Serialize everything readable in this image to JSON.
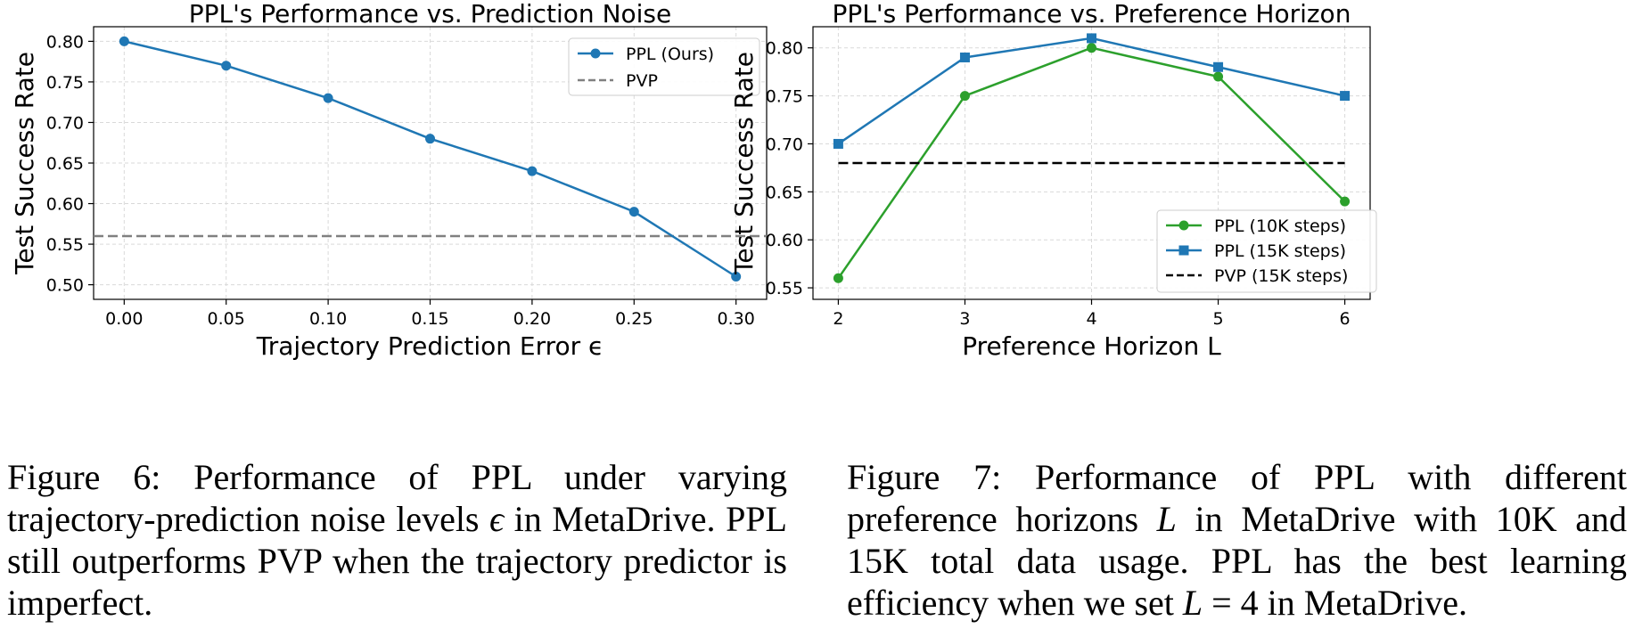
{
  "chart_data": [
    {
      "type": "line",
      "title": "PPL's Performance vs. Prediction Noise",
      "xlabel": "Trajectory Prediction Error ϵ",
      "ylabel": "Test Success Rate",
      "x": [
        0.0,
        0.05,
        0.1,
        0.15,
        0.2,
        0.25,
        0.3
      ],
      "x_tick_labels": [
        "0.00",
        "0.05",
        "0.10",
        "0.15",
        "0.20",
        "0.25",
        "0.30"
      ],
      "xlim": [
        -0.015,
        0.315
      ],
      "ylim": [
        0.482,
        0.818
      ],
      "y_ticks": [
        0.5,
        0.55,
        0.6,
        0.65,
        0.7,
        0.75,
        0.8
      ],
      "y_tick_labels": [
        "0.50",
        "0.55",
        "0.60",
        "0.65",
        "0.70",
        "0.75",
        "0.80"
      ],
      "grid": true,
      "legend_position": "top-right",
      "series": [
        {
          "name": "PPL (Ours)",
          "values": [
            0.8,
            0.77,
            0.73,
            0.68,
            0.64,
            0.59,
            0.51
          ],
          "color": "#1f77b4",
          "marker": "circle",
          "style": "solid"
        }
      ],
      "reference_lines": [
        {
          "name": "PVP",
          "y": 0.56,
          "color": "#808080",
          "style": "dashed"
        }
      ]
    },
    {
      "type": "line",
      "title": "PPL's Performance vs. Preference Horizon",
      "xlabel": "Preference Horizon L",
      "ylabel": "Test Success Rate",
      "x": [
        2,
        3,
        4,
        5,
        6
      ],
      "x_tick_labels": [
        "2",
        "3",
        "4",
        "5",
        "6"
      ],
      "xlim": [
        1.8,
        6.2
      ],
      "ylim": [
        0.538,
        0.822
      ],
      "y_ticks": [
        0.55,
        0.6,
        0.65,
        0.7,
        0.75,
        0.8
      ],
      "y_tick_labels": [
        "0.55",
        "0.60",
        "0.65",
        "0.70",
        "0.75",
        "0.80"
      ],
      "grid": true,
      "legend_position": "lower-right",
      "series": [
        {
          "name": "PPL (10K steps)",
          "values": [
            0.56,
            0.75,
            0.8,
            0.77,
            0.64
          ],
          "color": "#2ca02c",
          "marker": "circle",
          "style": "solid"
        },
        {
          "name": "PPL (15K steps)",
          "values": [
            0.7,
            0.79,
            0.81,
            0.78,
            0.75
          ],
          "color": "#1f77b4",
          "marker": "square",
          "style": "solid"
        },
        {
          "name": "PVP (15K steps)",
          "values": [
            0.68,
            0.68,
            0.68,
            0.68,
            0.68
          ],
          "color": "#000000",
          "marker": "none",
          "style": "dashed"
        }
      ]
    }
  ],
  "captions": {
    "fig6": {
      "t1": "Figure 6:  Performance of PPL under varying trajectory-prediction noise levels ",
      "sym": "ϵ",
      "t2": " in MetaDrive. PPL still outperforms PVP when the trajectory predictor is imperfect."
    },
    "fig7": {
      "t1": "Figure 7:  Performance of PPL with different preference horizons ",
      "sym1": "L",
      "t2": " in MetaDrive with 10K and 15K total data usage. PPL has the best learning efficiency when we set ",
      "sym2": "L",
      "t3": " = 4 in MetaDrive."
    }
  }
}
